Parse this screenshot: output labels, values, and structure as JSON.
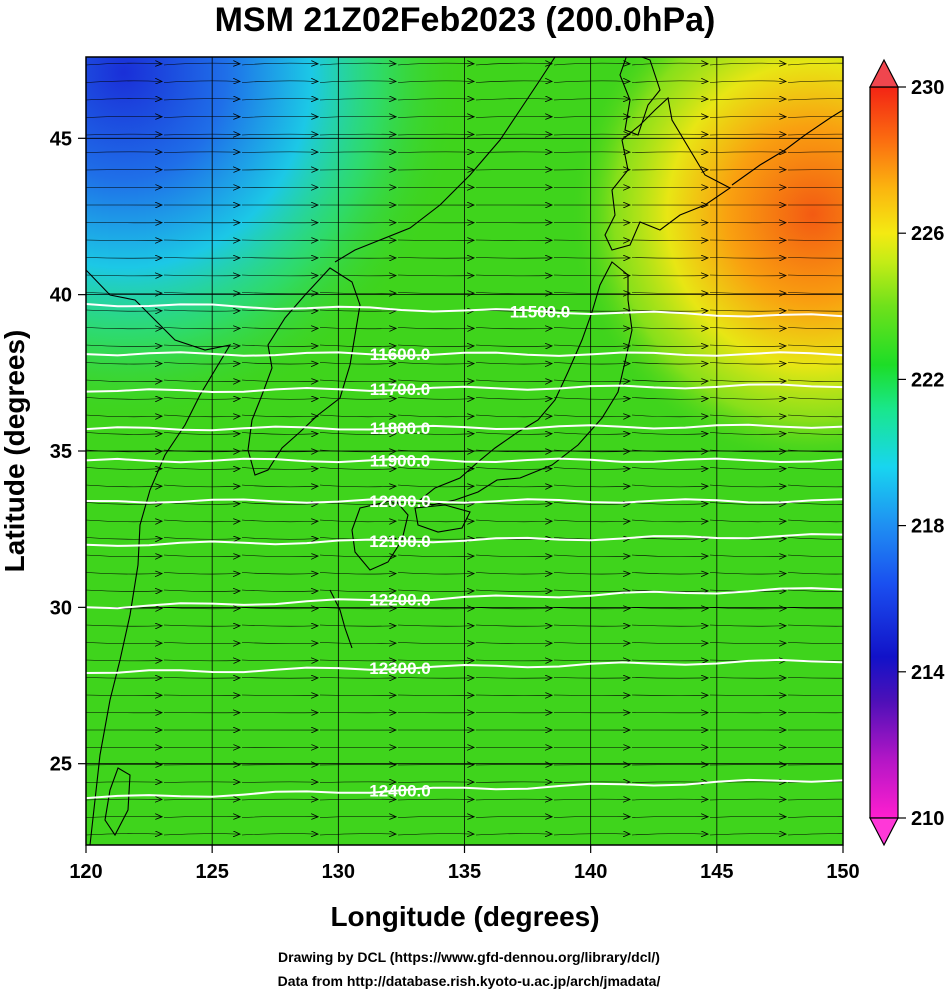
{
  "chart_data": {
    "type": "heatmap",
    "title": "MSM 21Z02Feb2023 (200.0hPa)",
    "xlabel": "Longitude (degrees)",
    "ylabel": "Latitude  (degrees)",
    "xlim": [
      120,
      150
    ],
    "ylim": [
      22.4,
      47.6
    ],
    "xticks": [
      "120",
      "125",
      "130",
      "135",
      "140",
      "145",
      "150"
    ],
    "yticks": [
      "25",
      "30",
      "35",
      "40",
      "45"
    ],
    "grid": true,
    "colorbar": {
      "range": [
        210,
        230
      ],
      "ticks": [
        "210",
        "214",
        "218",
        "222",
        "226",
        "230"
      ],
      "extend": "both",
      "placement": "right"
    },
    "contours": [
      {
        "level": "11500.0",
        "lat_west": 39.7,
        "lat_east": 39.3
      },
      {
        "level": "11600.0",
        "lat_west": 38.1,
        "lat_east": 38.1
      },
      {
        "level": "11700.0",
        "lat_west": 36.9,
        "lat_east": 37.1
      },
      {
        "level": "11800.0",
        "lat_west": 35.7,
        "lat_east": 35.8
      },
      {
        "level": "11900.0",
        "lat_west": 34.7,
        "lat_east": 34.7
      },
      {
        "level": "12000.0",
        "lat_west": 33.4,
        "lat_east": 33.4
      },
      {
        "level": "12100.0",
        "lat_west": 32.0,
        "lat_east": 32.3
      },
      {
        "level": "12200.0",
        "lat_west": 30.0,
        "lat_east": 30.6
      },
      {
        "level": "12300.0",
        "lat_west": 27.9,
        "lat_east": 28.3
      },
      {
        "level": "12400.0",
        "lat_west": 23.9,
        "lat_east": 24.5
      }
    ],
    "field_features": [
      {
        "name": "cold core",
        "lon": 121,
        "lat": 47.5,
        "value": 215
      },
      {
        "name": "cool band",
        "lon": 124,
        "lat": 45.0,
        "value": 218
      },
      {
        "name": "warm core",
        "lon": 148,
        "lat": 44.5,
        "value": 228
      },
      {
        "name": "background",
        "value": 222
      }
    ],
    "wind_vectors": "westerly streamlines"
  },
  "credits": {
    "line1": "Drawing by DCL (https://www.gfd-dennou.org/library/dcl/)",
    "line2": "Data from http://database.rish.kyoto-u.ac.jp/arch/jmadata/"
  },
  "colors": {
    "background_field": "#3fd41c",
    "contour": "#ffffff",
    "coastline": "#000000"
  }
}
